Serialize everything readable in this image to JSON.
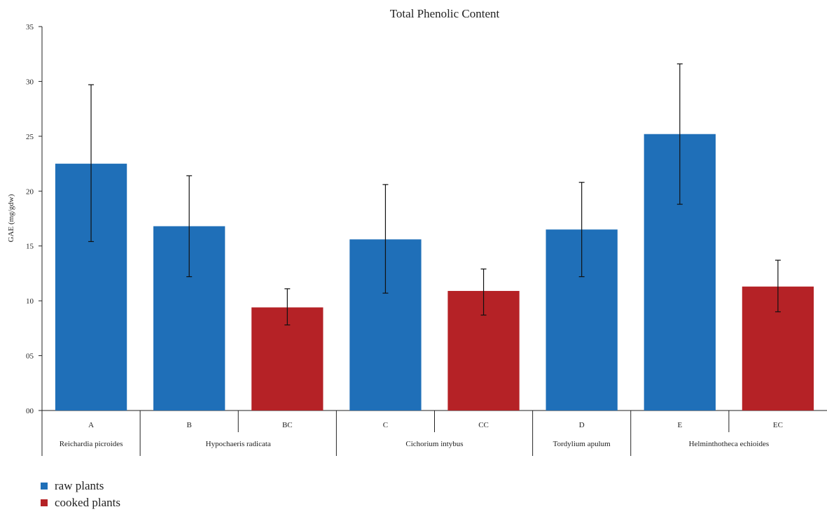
{
  "chart_data": {
    "type": "bar",
    "title": "Total Phenolic Content",
    "ylabel": "GAE (mg/gdw)",
    "xlabel": "",
    "ylim": [
      0,
      35
    ],
    "yticks": [
      0,
      5,
      10,
      15,
      20,
      25,
      30,
      35
    ],
    "ytick_labels": [
      "00",
      "05",
      "10",
      "15",
      "20",
      "25",
      "30",
      "35"
    ],
    "grid": false,
    "legend_position": "bottom-left",
    "categories": [
      "A",
      "B",
      "BC",
      "C",
      "CC",
      "D",
      "E",
      "EC"
    ],
    "values": [
      22.5,
      16.8,
      9.4,
      15.6,
      10.9,
      16.5,
      25.2,
      11.3
    ],
    "error_low": [
      15.4,
      12.2,
      7.8,
      10.7,
      8.7,
      12.2,
      18.8,
      9.0
    ],
    "error_high": [
      29.7,
      21.4,
      11.1,
      20.6,
      12.9,
      20.8,
      31.6,
      13.7
    ],
    "bar_series": [
      "raw",
      "raw",
      "cooked",
      "raw",
      "cooked",
      "raw",
      "raw",
      "cooked"
    ],
    "groups": [
      {
        "label": "Reichardia picroides",
        "members": [
          "A"
        ]
      },
      {
        "label": "Hypochaeris radicata",
        "members": [
          "B",
          "BC"
        ]
      },
      {
        "label": "Cichorium intybus",
        "members": [
          "C",
          "CC"
        ]
      },
      {
        "label": "Tordylium apulum",
        "members": [
          "D"
        ]
      },
      {
        "label": "Helminthotheca echioides",
        "members": [
          "E",
          "EC"
        ]
      }
    ],
    "series": [
      {
        "key": "raw",
        "name": "raw plants",
        "color": "#1f6fb8"
      },
      {
        "key": "cooked",
        "name": "cooked plants",
        "color": "#b52226"
      }
    ]
  }
}
